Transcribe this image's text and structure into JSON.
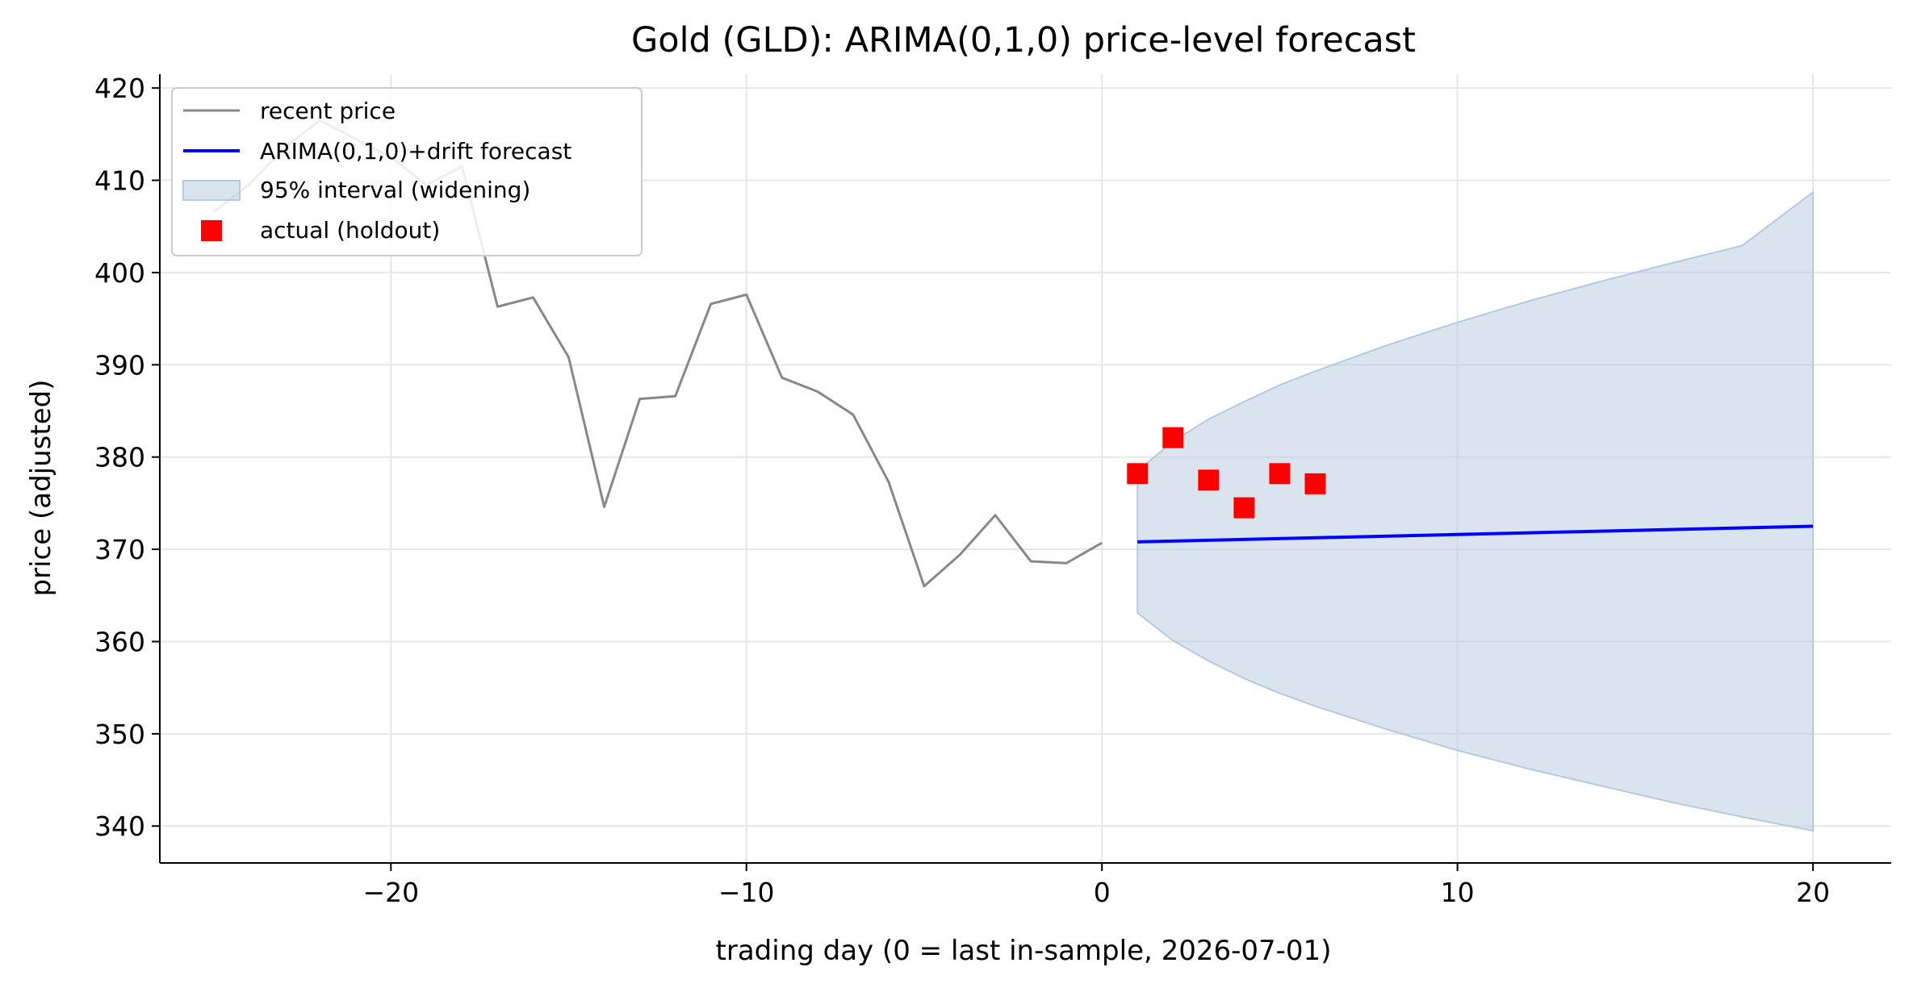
{
  "chart_data": {
    "type": "line",
    "title": "Gold (GLD): ARIMA(0,1,0) price-level forecast",
    "xlabel": "trading day (0 = last in-sample, 2026-07-01)",
    "ylabel": "price (adjusted)",
    "xlim": [
      -26.5,
      22.2
    ],
    "ylim": [
      336,
      421.5
    ],
    "xticks": [
      -20,
      -10,
      0,
      10,
      20
    ],
    "xtick_labels": [
      "−20",
      "−10",
      "0",
      "10",
      "20"
    ],
    "yticks": [
      340,
      350,
      360,
      370,
      380,
      390,
      400,
      410,
      420
    ],
    "ytick_labels": [
      "340",
      "350",
      "360",
      "370",
      "380",
      "390",
      "400",
      "410",
      "420"
    ],
    "grid": true,
    "legend_position": "top-left",
    "series": [
      {
        "name": "recent price",
        "kind": "line",
        "color": "#888888",
        "x": [
          -25,
          -24,
          -23,
          -22,
          -21,
          -20,
          -19,
          -18,
          -17,
          -16,
          -15,
          -14,
          -13,
          -12,
          -11,
          -10,
          -9,
          -8,
          -7,
          -6,
          -5,
          -4,
          -3,
          -2,
          -1,
          0
        ],
        "y": [
          406.5,
          409.5,
          413.5,
          416.5,
          414.5,
          412.5,
          409.5,
          411.5,
          396.3,
          397.3,
          390.8,
          374.6,
          386.3,
          386.6,
          396.6,
          397.6,
          388.6,
          387.1,
          384.6,
          377.3,
          366.0,
          369.4,
          373.7,
          368.7,
          368.5,
          370.7
        ]
      },
      {
        "name": "ARIMA(0,1,0)+drift forecast",
        "kind": "line",
        "color": "#0000ff",
        "x": [
          1,
          20
        ],
        "y": [
          370.8,
          372.5
        ]
      },
      {
        "name": "95% interval (widening)",
        "kind": "band",
        "color": "#b3c9e0",
        "x": [
          1,
          2,
          3,
          4,
          5,
          6,
          8,
          10,
          12,
          14,
          16,
          18,
          20
        ],
        "lower": [
          363.1,
          360.1,
          357.9,
          356.0,
          354.4,
          353.0,
          350.5,
          348.2,
          346.2,
          344.4,
          342.6,
          341.0,
          339.5
        ],
        "upper": [
          378.5,
          381.7,
          384.1,
          386.0,
          387.8,
          389.3,
          392.1,
          394.6,
          396.9,
          399.0,
          401.0,
          402.9,
          408.7
        ]
      },
      {
        "name": "actual (holdout)",
        "kind": "scatter",
        "color": "#ff0000",
        "x": [
          1,
          2,
          3,
          4,
          5,
          6
        ],
        "y": [
          378.2,
          382.1,
          377.5,
          374.5,
          378.2,
          377.1
        ]
      }
    ]
  }
}
